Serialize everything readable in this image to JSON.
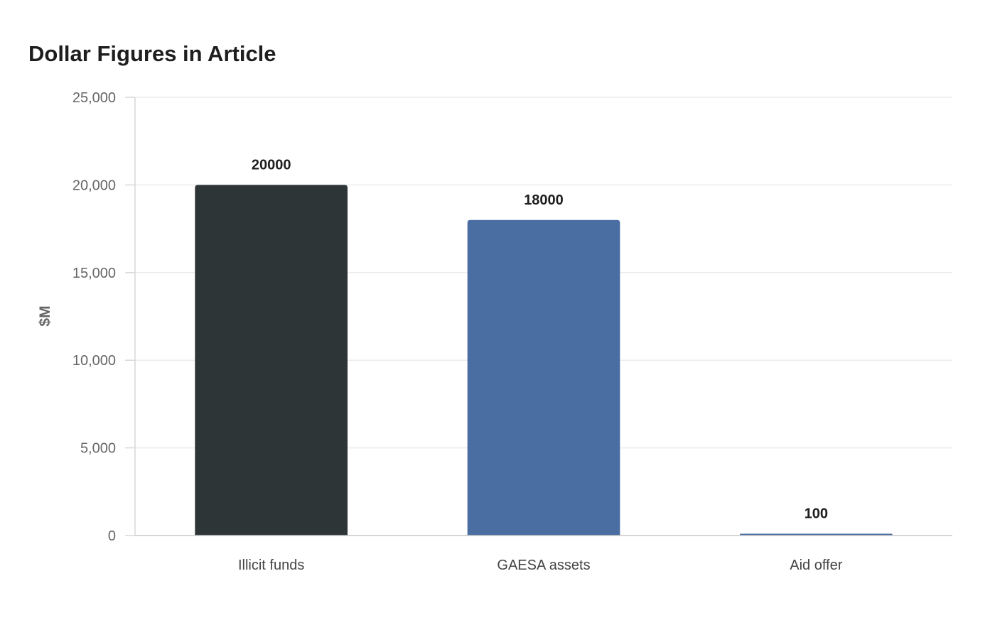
{
  "chart_data": {
    "type": "bar",
    "title": "Dollar Figures in Article",
    "xlabel": "",
    "ylabel": "$M",
    "ylim": [
      0,
      25000
    ],
    "yticks": [
      0,
      5000,
      10000,
      15000,
      20000,
      25000
    ],
    "ytick_labels": [
      "0",
      "5,000",
      "10,000",
      "15,000",
      "20,000",
      "25,000"
    ],
    "categories": [
      "Illicit funds",
      "GAESA assets",
      "Aid offer"
    ],
    "values": [
      20000,
      18000,
      100
    ],
    "value_labels": [
      "20000",
      "18000",
      "100"
    ],
    "colors": [
      "#2e3537",
      "#4a6da2",
      "#4a6da2"
    ],
    "grid": true,
    "legend": "none"
  }
}
